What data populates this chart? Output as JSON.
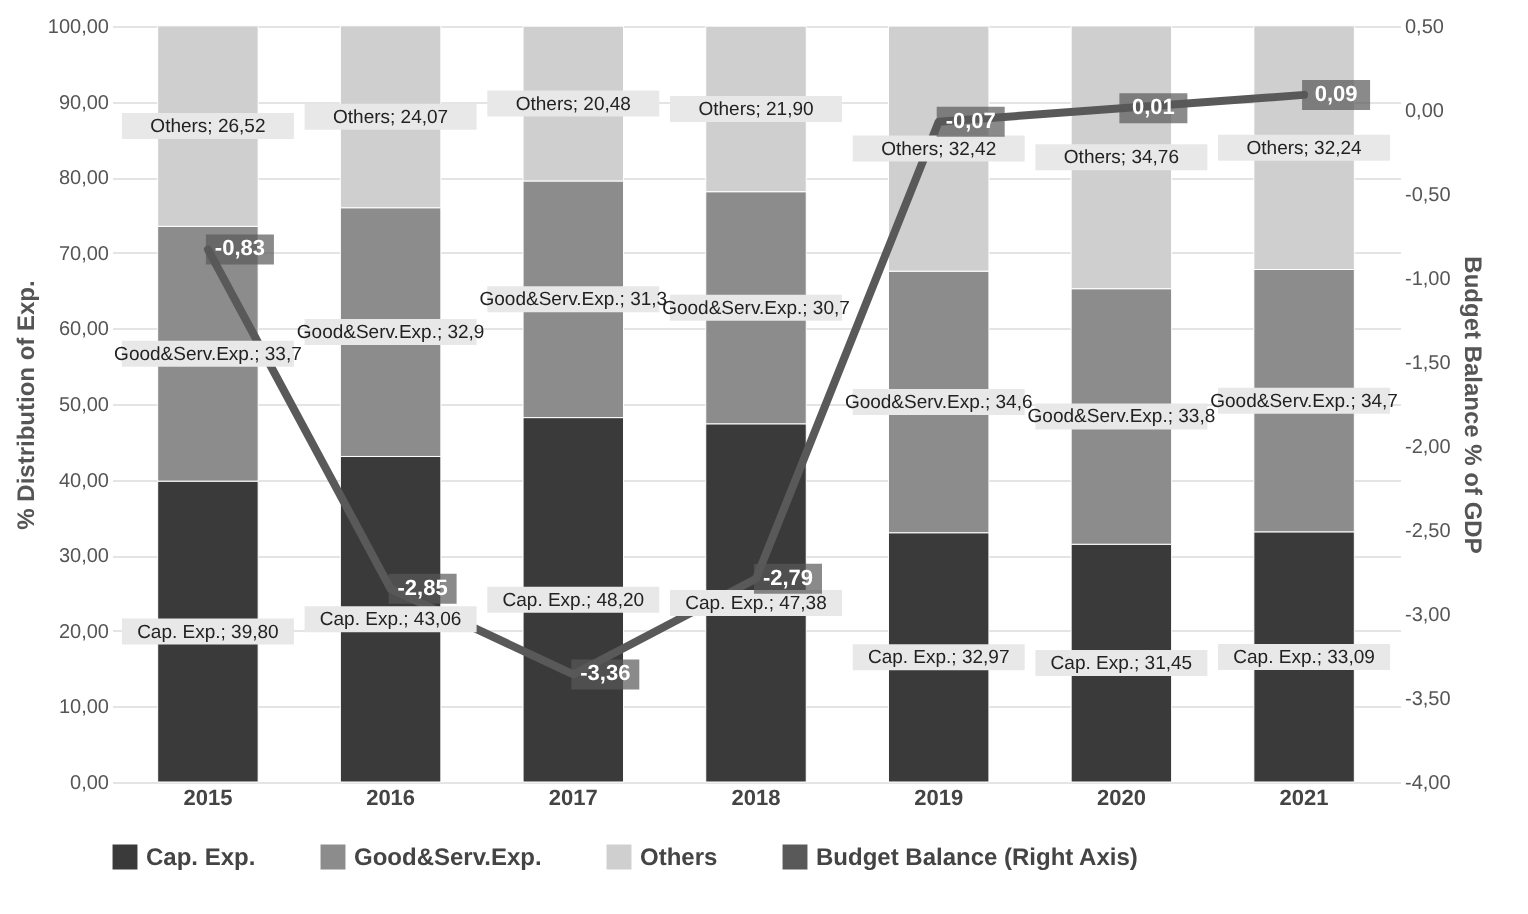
{
  "chart_data": {
    "type": "bar",
    "stacked": true,
    "categories": [
      "2015",
      "2016",
      "2017",
      "2018",
      "2019",
      "2020",
      "2021"
    ],
    "ylabel": "% Distribution of Exp.",
    "y2label": "Budget Balance % of GDP",
    "ylim": [
      0,
      100
    ],
    "yticks": [
      {
        "value": 0,
        "label": "0,00"
      },
      {
        "value": 10,
        "label": "10,00"
      },
      {
        "value": 20,
        "label": "20,00"
      },
      {
        "value": 30,
        "label": "30,00"
      },
      {
        "value": 40,
        "label": "40,00"
      },
      {
        "value": 50,
        "label": "50,00"
      },
      {
        "value": 60,
        "label": "60,00"
      },
      {
        "value": 70,
        "label": "70,00"
      },
      {
        "value": 80,
        "label": "80,00"
      },
      {
        "value": 90,
        "label": "90,00"
      },
      {
        "value": 100,
        "label": "100,00"
      }
    ],
    "y2lim": [
      -4,
      0.5
    ],
    "y2ticks": [
      {
        "value": -4,
        "label": "-4,00"
      },
      {
        "value": -3.5,
        "label": "-3,50"
      },
      {
        "value": -3,
        "label": "-3,00"
      },
      {
        "value": -2.5,
        "label": "-2,50"
      },
      {
        "value": -2,
        "label": "-2,00"
      },
      {
        "value": -1.5,
        "label": "-1,50"
      },
      {
        "value": -1,
        "label": "-1,00"
      },
      {
        "value": -0.5,
        "label": "-0,50"
      },
      {
        "value": 0,
        "label": "0,00"
      },
      {
        "value": 0.5,
        "label": "0,50"
      }
    ],
    "grid": "y",
    "legend": "bottom",
    "marker": "none",
    "series": [
      {
        "name": "Cap. Exp.",
        "type": "bar",
        "color": "#3a3a3a",
        "values": [
          39.8,
          43.06,
          48.2,
          47.38,
          32.97,
          31.45,
          33.09
        ],
        "value_labels": [
          "Cap. Exp.; 39,80",
          "Cap. Exp.; 43,06",
          "Cap. Exp.; 48,20",
          "Cap. Exp.; 47,38",
          "Cap. Exp.; 32,97",
          "Cap. Exp.; 31,45",
          "Cap. Exp.; 33,09"
        ]
      },
      {
        "name": "Good&Serv.Exp.",
        "type": "bar",
        "color": "#8c8c8c",
        "values": [
          33.7,
          32.9,
          31.3,
          30.7,
          34.6,
          33.8,
          34.7
        ],
        "value_labels": [
          "Good&Serv.Exp.; 33,7",
          "Good&Serv.Exp.; 32,9",
          "Good&Serv.Exp.; 31,3",
          "Good&Serv.Exp.; 30,7",
          "Good&Serv.Exp.; 34,6",
          "Good&Serv.Exp.; 33,8",
          "Good&Serv.Exp.; 34,7"
        ]
      },
      {
        "name": "Others",
        "type": "bar",
        "color": "#cfcfcf",
        "values": [
          26.52,
          24.07,
          20.48,
          21.9,
          32.42,
          34.76,
          32.24
        ],
        "value_labels": [
          "Others; 26,52",
          "Others; 24,07",
          "Others; 20,48",
          "Others; 21,90",
          "Others; 32,42",
          "Others; 34,76",
          "Others; 32,24"
        ]
      },
      {
        "name": "Budget Balance (Right Axis)",
        "type": "line",
        "axis": "y2",
        "color": "#595959",
        "line_style": "solid",
        "values": [
          -0.83,
          -2.85,
          -3.36,
          -2.79,
          -0.07,
          0.01,
          0.09
        ],
        "value_labels": [
          "-0,83",
          "-2,85",
          "-3,36",
          "-2,79",
          "-0,07",
          "0,01",
          "0,09"
        ]
      }
    ]
  }
}
